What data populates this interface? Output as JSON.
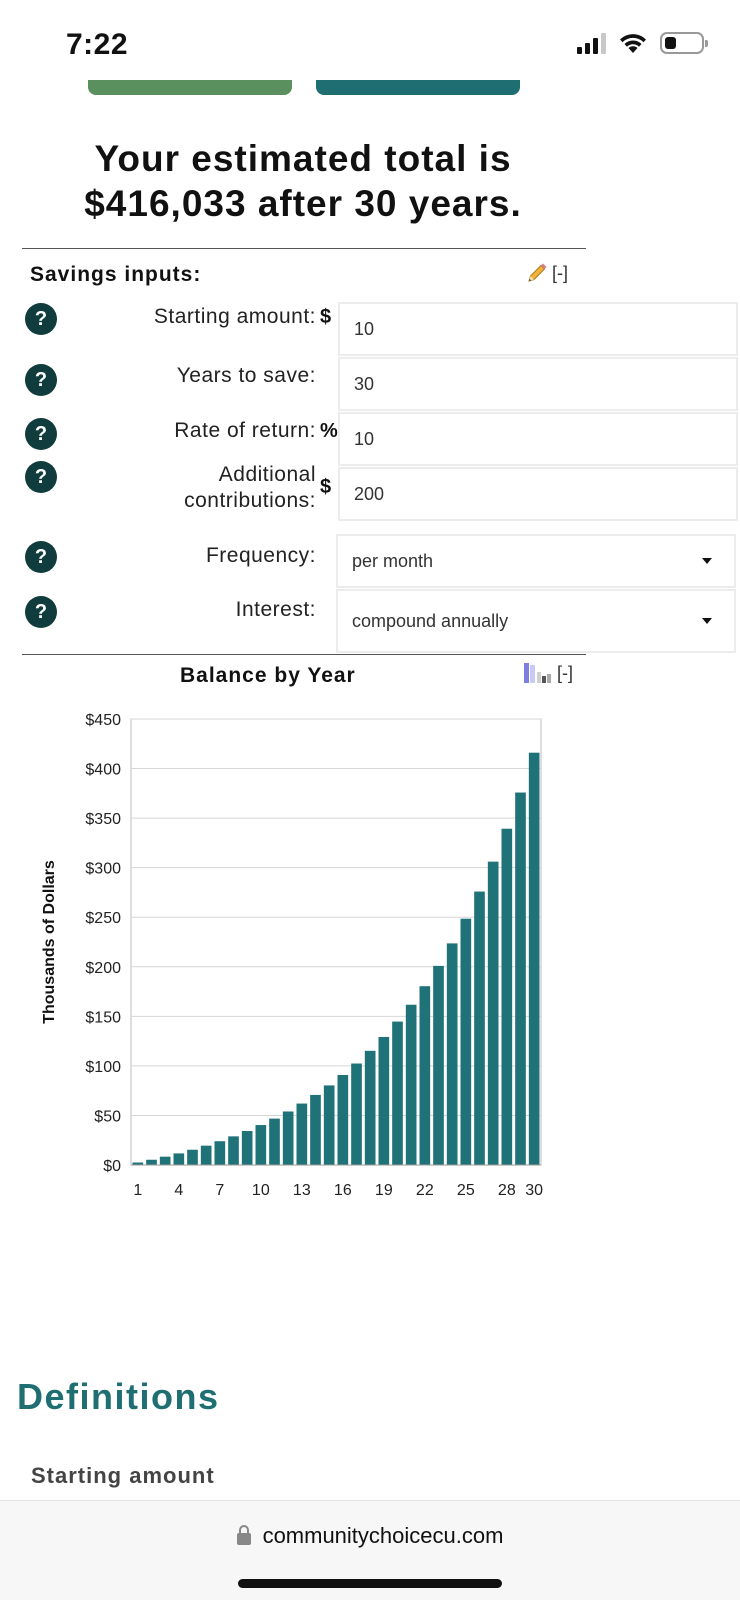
{
  "status": {
    "time": "7:22",
    "battery_level": 0.3
  },
  "result": {
    "line1": "Your estimated total is",
    "line2": "$416,033 after 30 years."
  },
  "savings_inputs": {
    "section_label": "Savings inputs:",
    "collapse_label": "[-]",
    "fields": {
      "starting_amount": {
        "label": "Starting amount:",
        "unit": "$",
        "value": "10"
      },
      "years_to_save": {
        "label": "Years to save:",
        "value": "30"
      },
      "rate_of_return": {
        "label": "Rate of return:",
        "unit": "%",
        "value": "10"
      },
      "additional_contributions": {
        "label_line1": "Additional",
        "label_line2": "contributions:",
        "unit": "$",
        "value": "200"
      },
      "frequency": {
        "label": "Frequency:",
        "value": "per month"
      },
      "interest": {
        "label": "Interest:",
        "value": "compound annually"
      }
    },
    "help_glyph": "?"
  },
  "chart_section": {
    "title": "Balance by Year",
    "collapse_label": "[-]"
  },
  "chart_data": {
    "type": "bar",
    "title": "Balance by Year",
    "xlabel": "",
    "ylabel": "Thousands of Dollars",
    "ylim": [
      0,
      450
    ],
    "grid": true,
    "bar_color": "#1f7378",
    "x_ticks": [
      "1",
      "4",
      "7",
      "10",
      "13",
      "16",
      "19",
      "22",
      "25",
      "28",
      "30"
    ],
    "y_tick_labels": [
      "$0",
      "$50",
      "$100",
      "$150",
      "$200",
      "$250",
      "$300",
      "$350",
      "$400",
      "$450"
    ],
    "y_tick_values": [
      0,
      50,
      100,
      150,
      200,
      250,
      300,
      350,
      400,
      450
    ],
    "categories": [
      1,
      2,
      3,
      4,
      5,
      6,
      7,
      8,
      9,
      10,
      11,
      12,
      13,
      14,
      15,
      16,
      17,
      18,
      19,
      20,
      21,
      22,
      23,
      24,
      25,
      26,
      27,
      28,
      29,
      30
    ],
    "values": [
      2.5,
      5.3,
      8.4,
      11.7,
      15.4,
      19.5,
      24.0,
      28.9,
      34.3,
      40.3,
      46.8,
      54.0,
      62.0,
      70.7,
      80.3,
      90.8,
      102.4,
      115.2,
      129.2,
      144.7,
      161.7,
      180.4,
      200.9,
      223.6,
      248.5,
      275.9,
      306.1,
      339.3,
      375.8,
      416.0
    ]
  },
  "definitions": {
    "heading": "Definitions",
    "first_item": "Starting amount"
  },
  "browser": {
    "url": "communitychoicecu.com"
  },
  "colors": {
    "accent_teal": "#1f6e72",
    "accent_green": "#5a8f5e",
    "help_bg": "#113c3d"
  }
}
